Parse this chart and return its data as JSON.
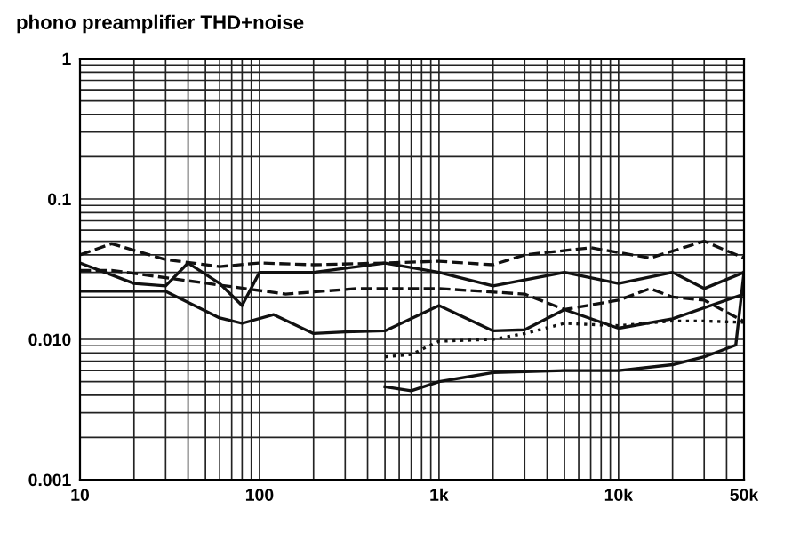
{
  "chart_data": {
    "type": "line",
    "title": "phono preamplifier THD+noise",
    "log": "xy",
    "grid": true,
    "xlim": [
      10,
      50000
    ],
    "ylim": [
      0.001,
      1
    ],
    "xticks": [
      10,
      100,
      {
        "value": 1000,
        "label": "1k"
      },
      {
        "value": 10000,
        "label": "10k"
      },
      {
        "value": 50000,
        "label": "50k"
      }
    ],
    "yticks": [
      {
        "value": 0.001,
        "label": "0.001"
      },
      {
        "value": 0.01,
        "label": "0.010"
      },
      {
        "value": 0.1,
        "label": "0.1"
      },
      {
        "value": 1,
        "label": "1"
      }
    ],
    "series": [
      {
        "color": "#111111",
        "line_style": "dashed",
        "x": [
          10,
          15,
          30,
          60,
          100,
          200,
          500,
          1000,
          2000,
          3000,
          7000,
          15000,
          30000,
          50000
        ],
        "values": [
          0.04,
          0.048,
          0.037,
          0.033,
          0.035,
          0.034,
          0.035,
          0.036,
          0.034,
          0.04,
          0.045,
          0.038,
          0.05,
          0.038
        ]
      },
      {
        "color": "#111111",
        "line_style": "solid",
        "x": [
          10,
          20,
          30,
          40,
          60,
          80,
          100,
          200,
          500,
          1000,
          2000,
          5000,
          10000,
          20000,
          30000,
          50000
        ],
        "values": [
          0.035,
          0.025,
          0.024,
          0.035,
          0.025,
          0.0174,
          0.03,
          0.03,
          0.035,
          0.03,
          0.024,
          0.03,
          0.025,
          0.03,
          0.023,
          0.03
        ]
      },
      {
        "color": "#111111",
        "line_style": "dashed",
        "x": [
          10,
          15,
          140,
          350,
          1000,
          3000,
          5000,
          10000,
          15000,
          20000,
          30000,
          50000
        ],
        "values": [
          0.031,
          0.031,
          0.021,
          0.023,
          0.023,
          0.021,
          0.0163,
          0.019,
          0.023,
          0.02,
          0.019,
          0.0134
        ]
      },
      {
        "color": "#111111",
        "line_style": "solid",
        "x": [
          10,
          30,
          60,
          80,
          120,
          200,
          300,
          500,
          1000,
          2000,
          3000,
          5000,
          10000,
          20000,
          50000
        ],
        "values": [
          0.022,
          0.022,
          0.0142,
          0.013,
          0.015,
          0.011,
          0.0113,
          0.0115,
          0.0174,
          0.0115,
          0.0117,
          0.0163,
          0.012,
          0.014,
          0.021
        ]
      },
      {
        "color": "#111111",
        "line_style": "dotted",
        "x": [
          500,
          700,
          1000,
          2000,
          3000,
          5000,
          10000,
          20000,
          30000,
          50000
        ],
        "values": [
          0.0075,
          0.0078,
          0.0097,
          0.01,
          0.011,
          0.013,
          0.0125,
          0.0135,
          0.0135,
          0.0132
        ]
      },
      {
        "color": "#111111",
        "line_style": "solid",
        "x": [
          500,
          700,
          1000,
          2000,
          5000,
          10000,
          20000,
          30000,
          45000,
          50000
        ],
        "values": [
          0.0046,
          0.0043,
          0.005,
          0.0058,
          0.006,
          0.006,
          0.0066,
          0.0075,
          0.0091,
          0.03
        ]
      }
    ]
  }
}
